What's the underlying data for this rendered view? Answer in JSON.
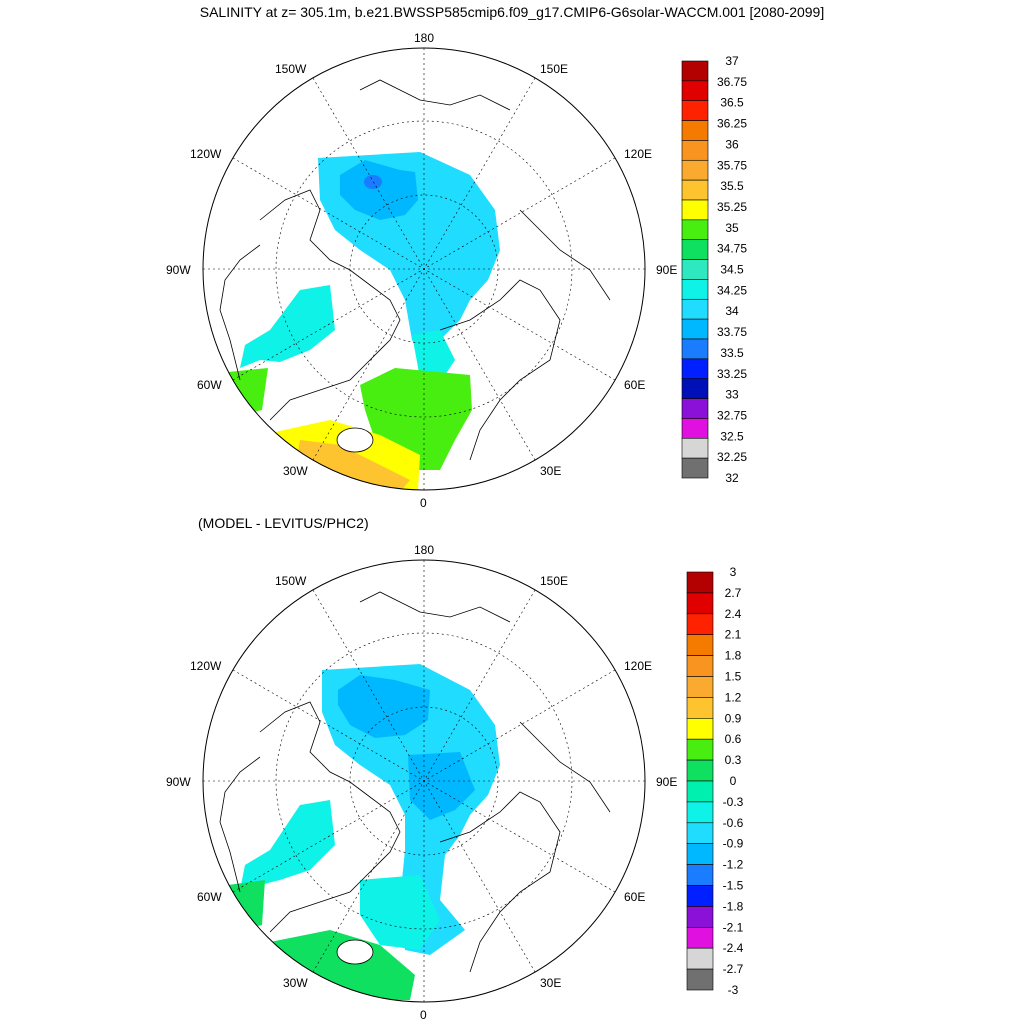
{
  "title": "SALINITY at z= 305.1m, b.e21.BWSSP585cmip6.f09_g17.CMIP6-G6solar-WACCM.001 [2080-2099]",
  "subtitle": "(MODEL - LEVITUS/PHC2)",
  "projection": "north polar stereographic",
  "longitude_labels": [
    "180",
    "150E",
    "120E",
    "90E",
    "60E",
    "30E",
    "0",
    "30W",
    "60W",
    "90W",
    "120W",
    "150W"
  ],
  "top_panel": {
    "name": "salinity",
    "colorbar_labels": [
      "37",
      "36.75",
      "36.5",
      "36.25",
      "36",
      "35.75",
      "35.5",
      "35.25",
      "35",
      "34.75",
      "34.5",
      "34.25",
      "34",
      "33.75",
      "33.5",
      "33.25",
      "33",
      "32.75",
      "32.5",
      "32.25",
      "32"
    ],
    "colors": [
      "#b30000",
      "#e00000",
      "#ff2200",
      "#f57a00",
      "#fa9420",
      "#fbaa30",
      "#fdc42f",
      "#ffff00",
      "#47ee10",
      "#10e060",
      "#2ee8c0",
      "#0ff2e8",
      "#20dcff",
      "#00b8ff",
      "#1a7cff",
      "#0020ff",
      "#0010b8",
      "#8b10d8",
      "#e010e0",
      "#d6d6d6",
      "#707070"
    ]
  },
  "bottom_panel": {
    "name": "difference",
    "colorbar_labels": [
      "3",
      "2.7",
      "2.4",
      "2.1",
      "1.8",
      "1.5",
      "1.2",
      "0.9",
      "0.6",
      "0.3",
      "0",
      "-0.3",
      "-0.6",
      "-0.9",
      "-1.2",
      "-1.5",
      "-1.8",
      "-2.1",
      "-2.4",
      "-2.7",
      "-3"
    ],
    "colors": [
      "#b30000",
      "#e00000",
      "#ff2200",
      "#f57a00",
      "#fa9420",
      "#fbaa30",
      "#fdc42f",
      "#ffff00",
      "#47ee10",
      "#10e060",
      "#00f0b0",
      "#0ff2e8",
      "#20dcff",
      "#00b8ff",
      "#1a7cff",
      "#0020ff",
      "#8b10d8",
      "#e010e0",
      "#d6d6d6",
      "#707070"
    ]
  }
}
